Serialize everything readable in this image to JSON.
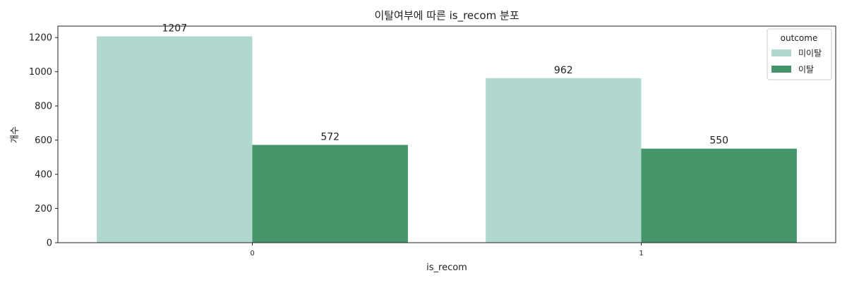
{
  "chart_data": {
    "type": "bar",
    "title": "이탈여부에 따른 is_recom 분포",
    "xlabel": "is_recom",
    "ylabel": "개수",
    "categories": [
      "0",
      "1"
    ],
    "series": [
      {
        "name": "미이탈",
        "color": "#b1d8cf",
        "values": [
          1207,
          962
        ]
      },
      {
        "name": "이탈",
        "color": "#44966a",
        "values": [
          572,
          550
        ]
      }
    ],
    "ylim": [
      0,
      1267
    ],
    "yticks": [
      0,
      200,
      400,
      600,
      800,
      1000,
      1200
    ],
    "legend": {
      "title": "outcome",
      "position": "top-right"
    },
    "grid": false
  }
}
